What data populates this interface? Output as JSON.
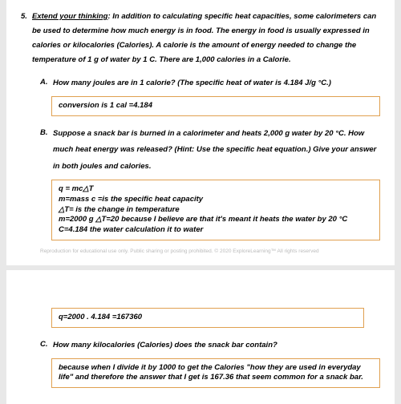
{
  "question": {
    "number": "5.",
    "title": "Extend your thinking",
    "text": ": In addition to calculating specific heat capacities, some calorimeters can be used to determine how much energy is in food. The energy in food is usually expressed in calories or kilocalories (Calories). A calorie is the amount of energy needed to change the temperature of 1 g of water by 1 C. There are 1,000 calories in a Calorie."
  },
  "partA": {
    "label": "A.",
    "text": "How many joules are in 1 calorie? (The specific heat of water is 4.184 J/g °C.)",
    "answer": "conversion is 1 cal =4.184"
  },
  "partB": {
    "label": "B.",
    "text": "Suppose a snack bar is burned in a calorimeter and heats 2,000 g water by 20 °C. How much heat energy was released? (Hint: Use the specific heat equation.) Give your answer in both joules and calories.",
    "answer_lines": {
      "l1": "q = mc△T",
      "l2": "m=mass c =is the specific heat capacity",
      "l3": "△T= is the change in temperature",
      "l4": "m=2000 g △T=20 because I believe are that it's meant it heats the water by 20 °C",
      "l5": "C=4.184 the water calculation it to water"
    },
    "answer2": "q=2000 . 4.184 =167360"
  },
  "partC": {
    "label": "C.",
    "text": "How many kilocalories (Calories) does the snack bar contain?",
    "answer": "because when I divide it by 1000 to get the Calories \"how they are used in everyday life\" and therefore the answer that I get is 167.36 that seem common for a snack bar."
  },
  "footer": "Reproduction for educational use only. Public sharing or posting prohibited. © 2020 ExploreLearning™ All rights reserved",
  "colors": {
    "box_border": "#e0a050",
    "bg": "#e8e8e8",
    "page": "#ffffff",
    "footer": "#bbbbbb"
  }
}
